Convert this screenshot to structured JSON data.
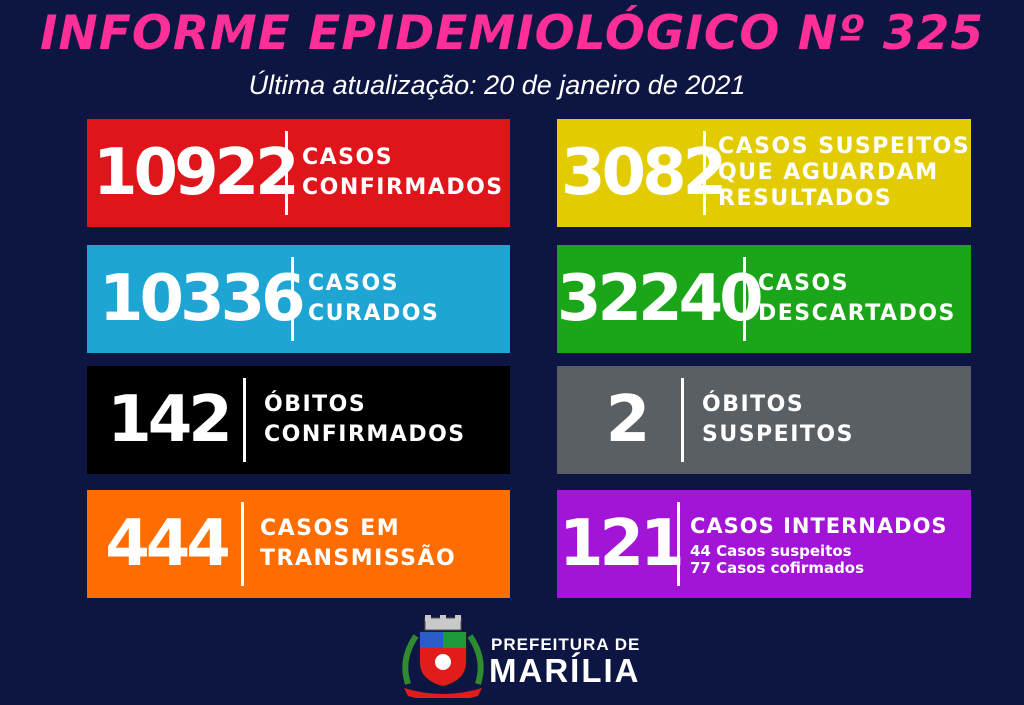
{
  "header": {
    "title": "INFORME EPIDEMIOLÓGICO Nº 325",
    "subtitle": "Última atualização: 20 de janeiro de 2021"
  },
  "cards": [
    {
      "value": "10922",
      "label_lines": [
        "CASOS",
        "CONFIRMADOS"
      ],
      "color": "#e0151b"
    },
    {
      "value": "3082",
      "label_lines": [
        "CASOS SUSPEITOS",
        "QUE AGUARDAM",
        "RESULTADOS"
      ],
      "color": "#e2cc00"
    },
    {
      "value": "10336",
      "label_lines": [
        "CASOS",
        "CURADOS"
      ],
      "color": "#1fa5d4"
    },
    {
      "value": "32240",
      "label_lines": [
        "CASOS",
        "DESCARTADOS"
      ],
      "color": "#1aa618"
    },
    {
      "value": "142",
      "label_lines": [
        "ÓBITOS",
        "CONFIRMADOS"
      ],
      "color": "#000000"
    },
    {
      "value": "2",
      "label_lines": [
        "ÓBITOS",
        "SUSPEITOS"
      ],
      "color": "#5a5f63"
    },
    {
      "value": "444",
      "label_lines": [
        "CASOS EM",
        "TRANSMISSÃO"
      ],
      "color": "#ff6d00"
    },
    {
      "value": "121",
      "label_lines": [
        "CASOS INTERNADOS"
      ],
      "details": [
        "44 Casos suspeitos",
        "77 Casos cofirmados"
      ],
      "color": "#a215d6"
    }
  ],
  "footer": {
    "line1": "PREFEITURA DE",
    "line2": "MARÍLIA",
    "icon": "coat-of-arms-icon"
  },
  "colors": {
    "background": "#0d1542",
    "title": "#ff2f97"
  }
}
